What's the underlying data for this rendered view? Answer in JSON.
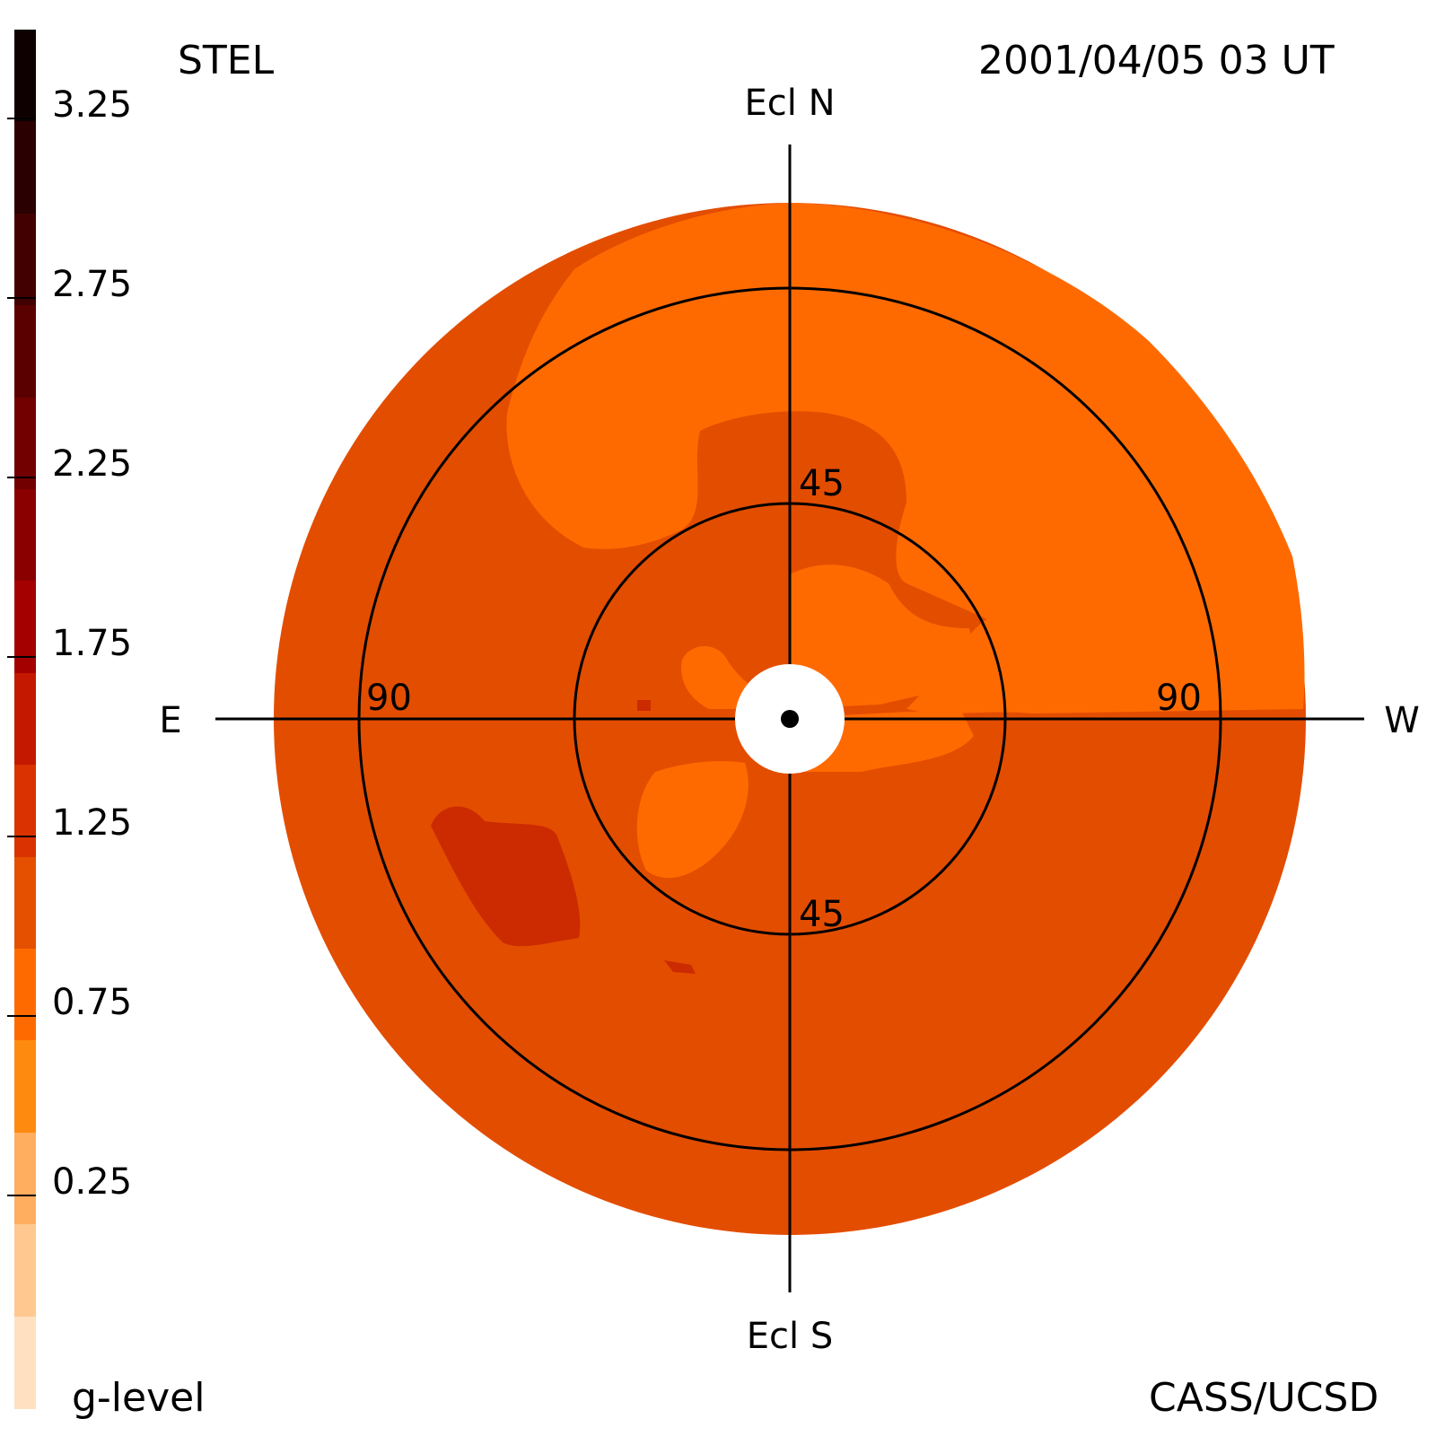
{
  "header": {
    "instrument": "STEL",
    "datetime": "2001/04/05 03 UT",
    "credit": "CASS/UCSD"
  },
  "colorbar": {
    "label": "g-level",
    "tick_labels": [
      "3.25",
      "2.75",
      "2.25",
      "1.75",
      "1.25",
      "0.75",
      "0.25"
    ],
    "colors": [
      "#0f0000",
      "#2a0000",
      "#430000",
      "#5a0000",
      "#720000",
      "#8a0000",
      "#a50000",
      "#c41800",
      "#da3200",
      "#e45000",
      "#ff6a00",
      "#ff8a10",
      "#ffae60",
      "#ffc890",
      "#ffe0c0"
    ]
  },
  "map": {
    "directions": {
      "north": "Ecl N",
      "south": "Ecl S",
      "east": "E",
      "west": "W"
    },
    "ring_labels": [
      "45",
      "45",
      "90",
      "90"
    ],
    "colors": {
      "base": "#e34d00",
      "light": "#ff6a00",
      "dark": "#cc2a00",
      "sun": "#ffffff"
    }
  }
}
